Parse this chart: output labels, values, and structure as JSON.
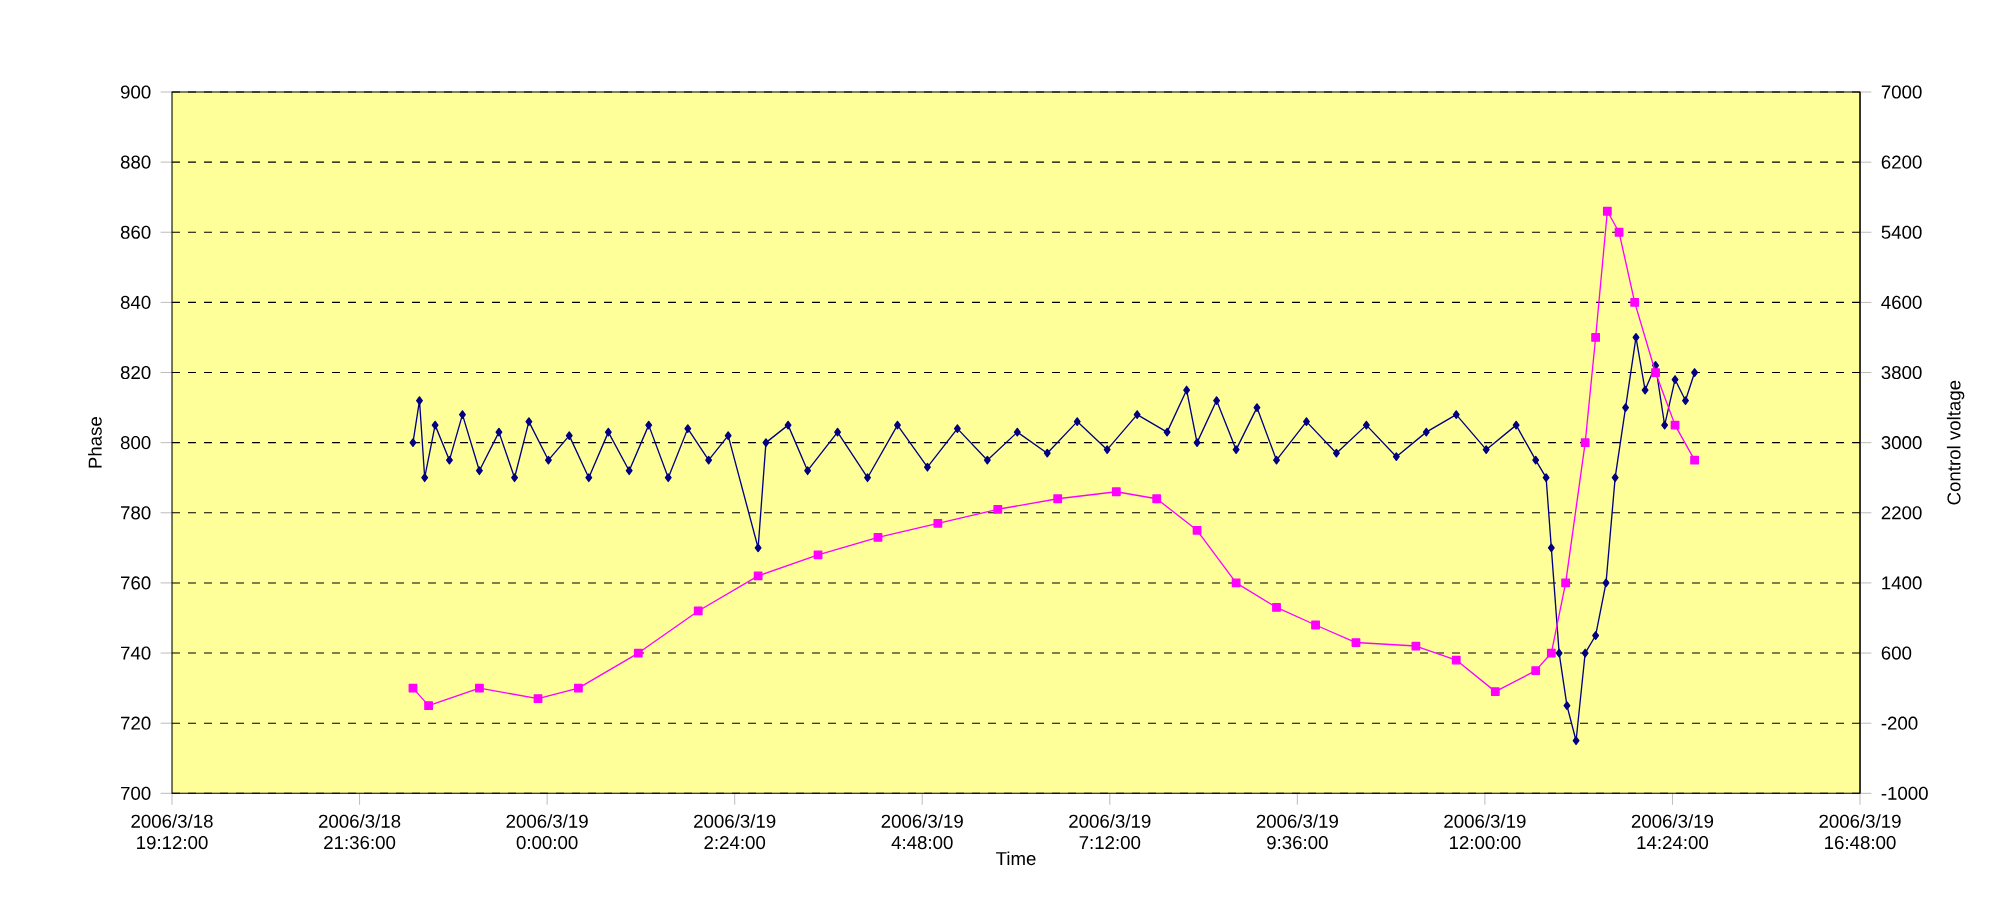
{
  "chart_data": {
    "type": "line",
    "xlabel": "Time",
    "ylabel": "Phase",
    "y2label": "Control voltage",
    "grid": "y",
    "xlim": [
      "2006-03-18T19:12",
      "2006-03-19T16:48"
    ],
    "xticks": [
      {
        "value": "2006-03-18T19:12",
        "label": "2006/3/18 19:12:00"
      },
      {
        "value": "2006-03-18T21:36",
        "label": "2006/3/18 21:36:00"
      },
      {
        "value": "2006-03-19T00:00",
        "label": "2006/3/19 0:00:00"
      },
      {
        "value": "2006-03-19T02:24",
        "label": "2006/3/19 2:24:00"
      },
      {
        "value": "2006-03-19T04:48",
        "label": "2006/3/19 4:48:00"
      },
      {
        "value": "2006-03-19T07:12",
        "label": "2006/3/19 7:12:00"
      },
      {
        "value": "2006-03-19T09:36",
        "label": "2006/3/19 9:36:00"
      },
      {
        "value": "2006-03-19T12:00",
        "label": "2006/3/19 12:00:00"
      },
      {
        "value": "2006-03-19T14:24",
        "label": "2006/3/19 14:24:00"
      },
      {
        "value": "2006-03-19T16:48",
        "label": "2006/3/19 16:48:00"
      }
    ],
    "ylim": [
      700,
      900
    ],
    "yticks": [
      700,
      720,
      740,
      760,
      780,
      800,
      820,
      840,
      860,
      880,
      900
    ],
    "y2lim": [
      -1000,
      7000
    ],
    "y2ticks": [
      -1000,
      -200,
      600,
      1400,
      2200,
      3000,
      3800,
      4600,
      5400,
      6200,
      7000
    ],
    "series": [
      {
        "color": "#000080",
        "marker": "diamond",
        "line_style": "solid",
        "x": [
          "2006-03-18T22:17",
          "2006-03-18T22:22",
          "2006-03-18T22:26",
          "2006-03-18T22:34",
          "2006-03-18T22:45",
          "2006-03-18T22:55",
          "2006-03-18T23:08",
          "2006-03-18T23:23",
          "2006-03-18T23:35",
          "2006-03-18T23:46",
          "2006-03-19T00:01",
          "2006-03-19T00:17",
          "2006-03-19T00:32",
          "2006-03-19T00:47",
          "2006-03-19T01:03",
          "2006-03-19T01:18",
          "2006-03-19T01:33",
          "2006-03-19T01:48",
          "2006-03-19T02:04",
          "2006-03-19T02:19",
          "2006-03-19T02:42",
          "2006-03-19T02:48",
          "2006-03-19T03:05",
          "2006-03-19T03:20",
          "2006-03-19T03:43",
          "2006-03-19T04:06",
          "2006-03-19T04:29",
          "2006-03-19T04:52",
          "2006-03-19T05:15",
          "2006-03-19T05:38",
          "2006-03-19T06:01",
          "2006-03-19T06:24",
          "2006-03-19T06:47",
          "2006-03-19T07:10",
          "2006-03-19T07:33",
          "2006-03-19T07:56",
          "2006-03-19T08:11",
          "2006-03-19T08:19",
          "2006-03-19T08:34",
          "2006-03-19T08:49",
          "2006-03-19T09:05",
          "2006-03-19T09:20",
          "2006-03-19T09:43",
          "2006-03-19T10:06",
          "2006-03-19T10:29",
          "2006-03-19T10:52",
          "2006-03-19T11:15",
          "2006-03-19T11:38",
          "2006-03-19T12:01",
          "2006-03-19T12:24",
          "2006-03-19T12:39",
          "2006-03-19T12:47",
          "2006-03-19T12:51",
          "2006-03-19T12:57",
          "2006-03-19T13:03",
          "2006-03-19T13:10",
          "2006-03-19T13:17",
          "2006-03-19T13:25",
          "2006-03-19T13:33",
          "2006-03-19T13:40",
          "2006-03-19T13:48",
          "2006-03-19T13:56",
          "2006-03-19T14:03",
          "2006-03-19T14:11",
          "2006-03-19T14:18",
          "2006-03-19T14:26",
          "2006-03-19T14:34",
          "2006-03-19T14:41"
        ],
        "values": [
          800,
          812,
          790,
          805,
          795,
          808,
          792,
          803,
          790,
          806,
          795,
          802,
          790,
          803,
          792,
          805,
          790,
          804,
          795,
          802,
          770,
          800,
          805,
          792,
          803,
          790,
          805,
          793,
          804,
          795,
          803,
          797,
          806,
          798,
          808,
          803,
          815,
          800,
          812,
          798,
          810,
          795,
          806,
          797,
          805,
          796,
          803,
          808,
          798,
          805,
          795,
          790,
          770,
          740,
          725,
          715,
          740,
          745,
          760,
          790,
          810,
          830,
          815,
          822,
          805,
          818,
          812,
          820
        ]
      },
      {
        "color": "#ff00ff",
        "marker": "square",
        "line_style": "solid",
        "axis": "y2",
        "x": [
          "2006-03-18T22:17",
          "2006-03-18T22:29",
          "2006-03-18T23:08",
          "2006-03-18T23:53",
          "2006-03-19T00:24",
          "2006-03-19T01:10",
          "2006-03-19T01:56",
          "2006-03-19T02:42",
          "2006-03-19T03:28",
          "2006-03-19T04:14",
          "2006-03-19T05:00",
          "2006-03-19T05:46",
          "2006-03-19T06:32",
          "2006-03-19T07:17",
          "2006-03-19T07:48",
          "2006-03-19T08:19",
          "2006-03-19T08:49",
          "2006-03-19T09:20",
          "2006-03-19T09:50",
          "2006-03-19T10:21",
          "2006-03-19T11:07",
          "2006-03-19T11:38",
          "2006-03-19T12:08",
          "2006-03-19T12:39",
          "2006-03-19T12:51",
          "2006-03-19T13:02",
          "2006-03-19T13:17",
          "2006-03-19T13:25",
          "2006-03-19T13:34",
          "2006-03-19T13:43",
          "2006-03-19T13:55",
          "2006-03-19T14:11",
          "2006-03-19T14:26",
          "2006-03-19T14:41"
        ],
        "values": [
          200,
          0,
          200,
          80,
          200,
          600,
          1080,
          1480,
          1720,
          1920,
          2080,
          2240,
          2360,
          2440,
          2360,
          2000,
          1400,
          1120,
          920,
          720,
          680,
          520,
          160,
          400,
          600,
          1400,
          3000,
          4200,
          5640,
          5400,
          4600,
          3800,
          3200,
          2800
        ]
      }
    ]
  }
}
